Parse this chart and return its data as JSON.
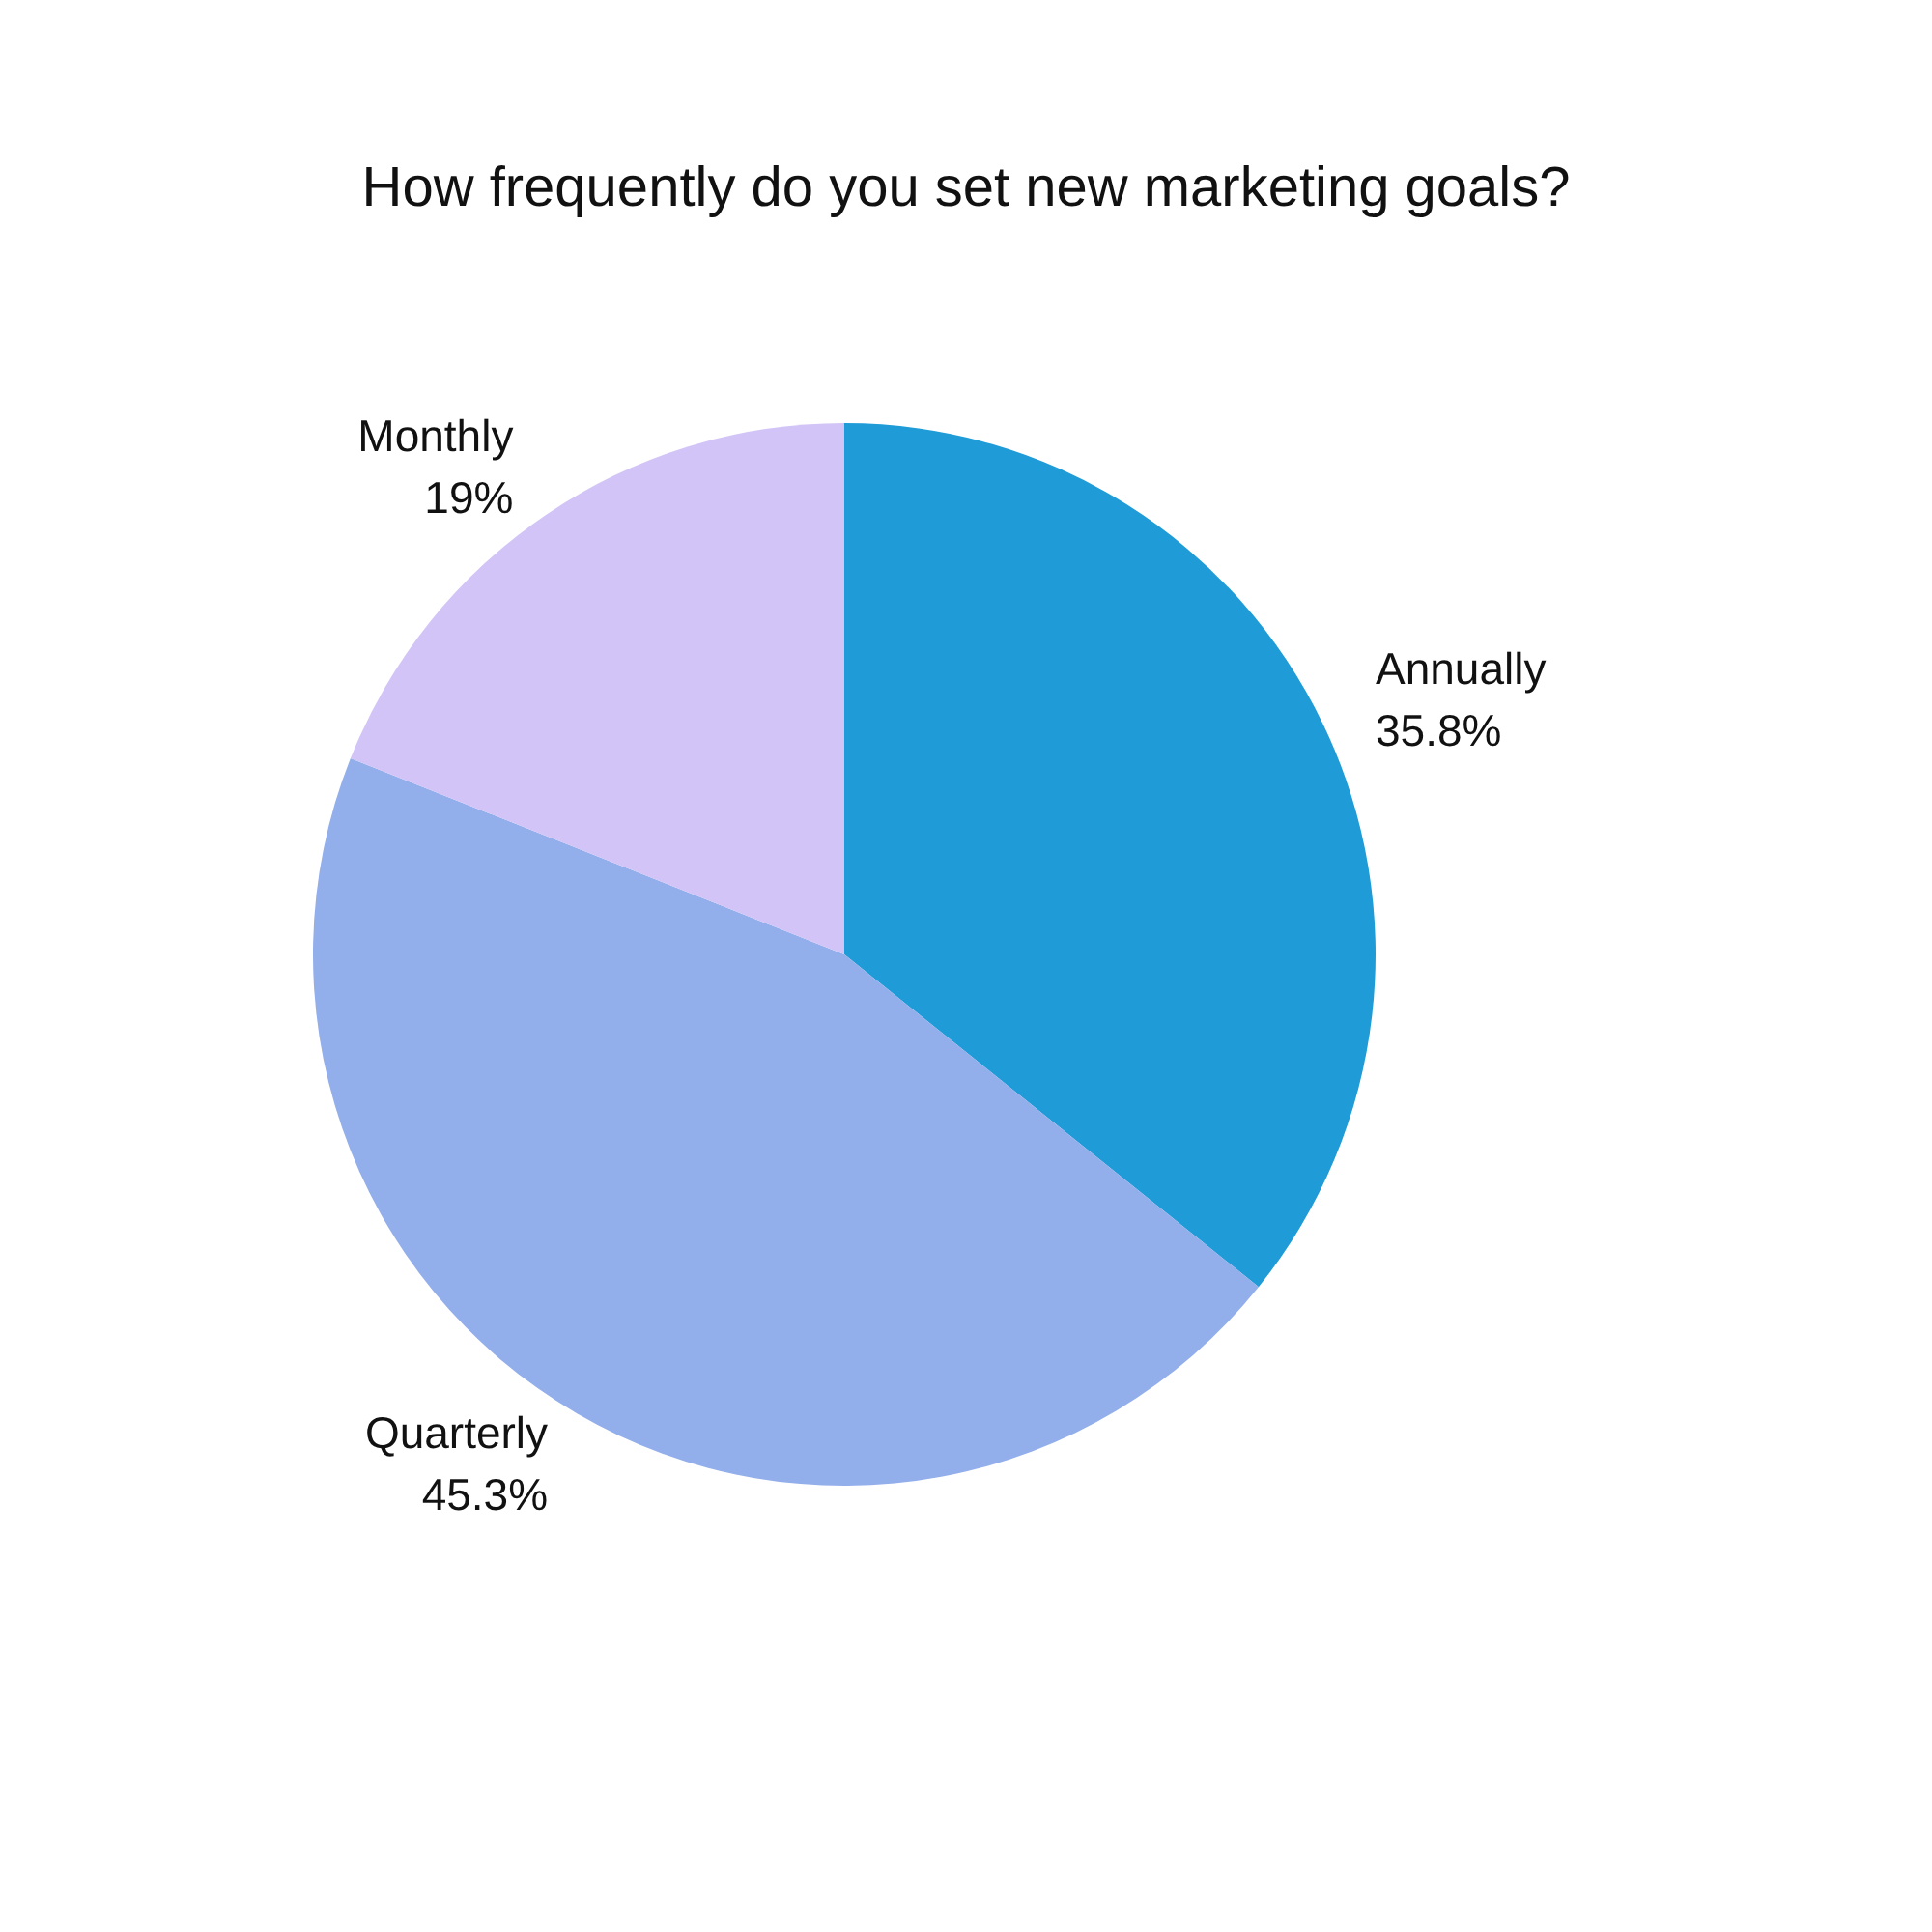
{
  "chart_data": {
    "type": "pie",
    "title": "How frequently do you set new marketing goals?",
    "categories": [
      "Annually",
      "Quarterly",
      "Monthly"
    ],
    "values": [
      35.8,
      45.3,
      19
    ],
    "value_labels": [
      "35.8%",
      "45.3%",
      "19%"
    ],
    "colors": [
      "#1f9bd7",
      "#92aeeb",
      "#d3c4f7"
    ],
    "legend": false
  }
}
